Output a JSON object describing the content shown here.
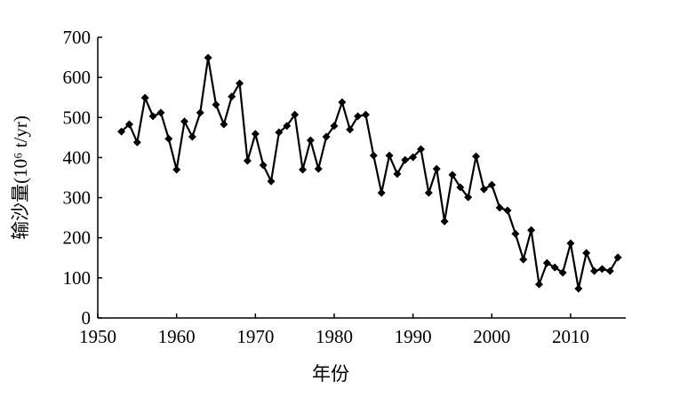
{
  "chart_data": {
    "type": "line",
    "xlabel": "年份",
    "ylabel": "输沙量(10⁶ t/yr)",
    "x": [
      1953,
      1954,
      1955,
      1956,
      1957,
      1958,
      1959,
      1960,
      1961,
      1962,
      1963,
      1964,
      1965,
      1966,
      1967,
      1968,
      1969,
      1970,
      1971,
      1972,
      1973,
      1974,
      1975,
      1976,
      1977,
      1978,
      1979,
      1980,
      1981,
      1982,
      1983,
      1984,
      1985,
      1986,
      1987,
      1988,
      1989,
      1990,
      1991,
      1992,
      1993,
      1994,
      1995,
      1996,
      1997,
      1998,
      1999,
      2000,
      2001,
      2002,
      2003,
      2004,
      2005,
      2006,
      2007,
      2008,
      2009,
      2010,
      2011,
      2012,
      2013,
      2014,
      2015,
      2016
    ],
    "series": [
      {
        "color": "#000000",
        "values": [
          465,
          483,
          438,
          549,
          503,
          512,
          447,
          370,
          490,
          452,
          512,
          649,
          532,
          483,
          552,
          585,
          392,
          459,
          381,
          341,
          463,
          479,
          507,
          370,
          443,
          372,
          452,
          479,
          538,
          470,
          503,
          507,
          405,
          312,
          405,
          359,
          394,
          401,
          421,
          312,
          372,
          241,
          357,
          326,
          301,
          403,
          321,
          332,
          275,
          268,
          210,
          146,
          219,
          84,
          137,
          126,
          113,
          186,
          73,
          162,
          117,
          122,
          117,
          151
        ]
      }
    ],
    "xlim": [
      1950,
      2017
    ],
    "xticks": [
      1950,
      1960,
      1970,
      1980,
      1990,
      2000,
      2010
    ],
    "ylim": [
      0,
      700
    ],
    "yticks": [
      0,
      100,
      200,
      300,
      400,
      500,
      600,
      700
    ]
  }
}
